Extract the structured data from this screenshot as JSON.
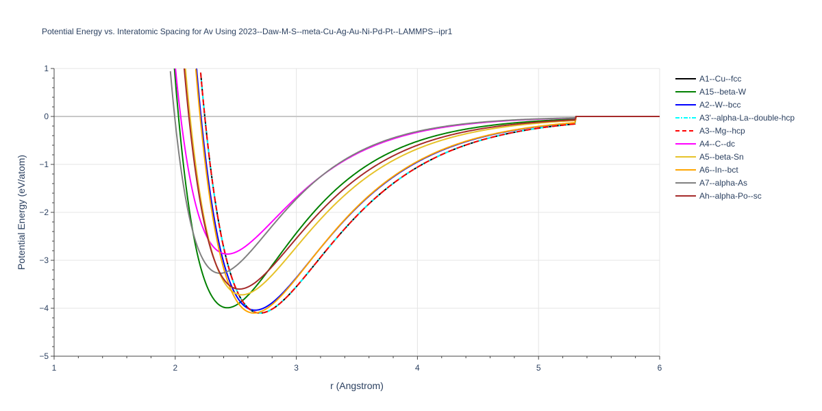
{
  "chart_data": {
    "type": "line",
    "title": "Potential Energy vs. Interatomic Spacing for Av Using 2023--Daw-M-S--meta-Cu-Ag-Au-Ni-Pd-Pt--LAMMPS--ipr1",
    "xlabel": "r (Angstrom)",
    "ylabel": "Potential Energy (eV/atom)",
    "xlim": [
      1,
      6
    ],
    "ylim": [
      -5,
      1
    ],
    "xticks": [
      1,
      2,
      3,
      4,
      5,
      6
    ],
    "yticks": [
      -5,
      -4,
      -3,
      -2,
      -1,
      0,
      1
    ],
    "grid": true,
    "legend_position": "right",
    "series": [
      {
        "name": "A1--Cu--fcc",
        "color": "#000000",
        "dash": "solid",
        "rmin": 2.7,
        "emin": -4.1,
        "alpha": 1.52
      },
      {
        "name": "A15--beta-W",
        "color": "#008000",
        "dash": "solid",
        "rmin": 2.43,
        "emin": -3.99,
        "alpha": 1.72
      },
      {
        "name": "A2--W--bcc",
        "color": "#0000ff",
        "dash": "solid",
        "rmin": 2.66,
        "emin": -4.04,
        "alpha": 1.55
      },
      {
        "name": "A3'--alpha-La--double-hcp",
        "color": "#00ffff",
        "dash": "dashdot",
        "rmin": 2.7,
        "emin": -4.1,
        "alpha": 1.52
      },
      {
        "name": "A3--Mg--hcp",
        "color": "#ff0000",
        "dash": "dash",
        "rmin": 2.7,
        "emin": -4.1,
        "alpha": 1.52
      },
      {
        "name": "A4--C--dc",
        "color": "#ff00ff",
        "dash": "solid",
        "rmin": 2.43,
        "emin": -2.87,
        "alpha": 1.8
      },
      {
        "name": "A5--beta-Sn",
        "color": "#e6c229",
        "dash": "solid",
        "rmin": 2.55,
        "emin": -3.72,
        "alpha": 1.62
      },
      {
        "name": "A6--In--bct",
        "color": "#ffa500",
        "dash": "solid",
        "rmin": 2.65,
        "emin": -4.1,
        "alpha": 1.56
      },
      {
        "name": "A7--alpha-As",
        "color": "#808080",
        "dash": "solid",
        "rmin": 2.37,
        "emin": -3.27,
        "alpha": 1.85
      },
      {
        "name": "Ah--alpha-Po--sc",
        "color": "#a52a2a",
        "dash": "solid",
        "rmin": 2.53,
        "emin": -3.6,
        "alpha": 1.66
      }
    ]
  }
}
